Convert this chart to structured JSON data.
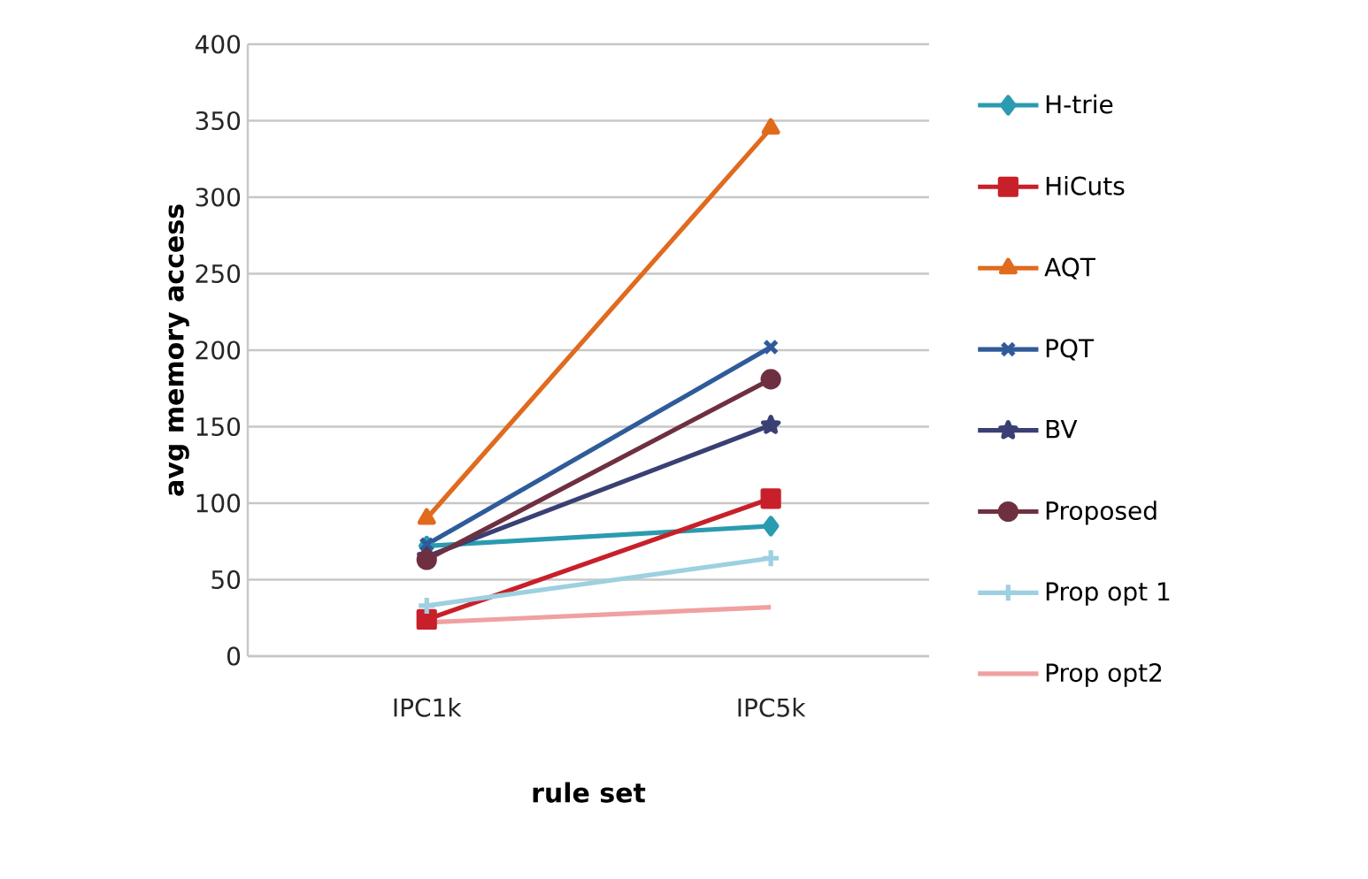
{
  "chart_data": {
    "type": "line",
    "xlabel": "rule set",
    "ylabel": "avg memory access",
    "categories": [
      "IPC1k",
      "IPC5k"
    ],
    "ylim": [
      0,
      400
    ],
    "yticks": [
      0,
      50,
      100,
      150,
      200,
      250,
      300,
      350,
      400
    ],
    "grid": "y",
    "legend": "right",
    "series": [
      {
        "name": "H-trie",
        "color": "#2a9bb0",
        "marker": "diamond",
        "values": [
          72,
          85
        ]
      },
      {
        "name": "HiCuts",
        "color": "#c8202a",
        "marker": "square",
        "values": [
          24,
          103
        ]
      },
      {
        "name": "AQT",
        "color": "#e06a1e",
        "marker": "triangle",
        "values": [
          90,
          345
        ]
      },
      {
        "name": "PQT",
        "color": "#2f5b9a",
        "marker": "cross",
        "values": [
          73,
          202
        ]
      },
      {
        "name": "BV",
        "color": "#3a3f74",
        "marker": "star",
        "values": [
          65,
          151
        ]
      },
      {
        "name": "Proposed",
        "color": "#6e3040",
        "marker": "circle",
        "values": [
          63,
          181
        ]
      },
      {
        "name": "Prop opt 1",
        "color": "#9dd0e0",
        "marker": "plus",
        "values": [
          33,
          64
        ]
      },
      {
        "name": "Prop opt2",
        "color": "#f0a0a0",
        "marker": "none",
        "values": [
          22,
          32
        ]
      }
    ]
  }
}
